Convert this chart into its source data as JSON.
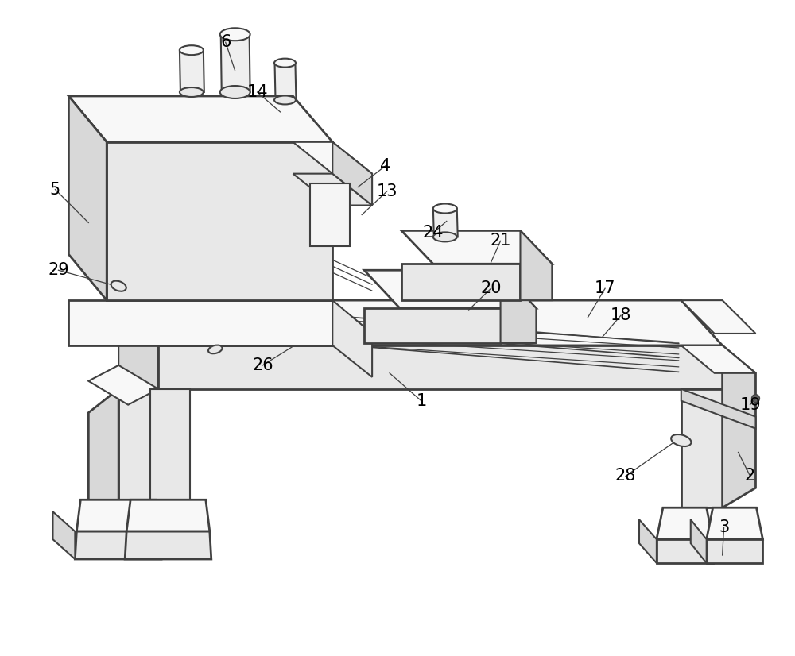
{
  "bg": "#ffffff",
  "lc": "#404040",
  "lw": 1.5,
  "lw2": 2.0,
  "fs": 15,
  "figsize": [
    10.0,
    8.26
  ],
  "dpi": 100
}
